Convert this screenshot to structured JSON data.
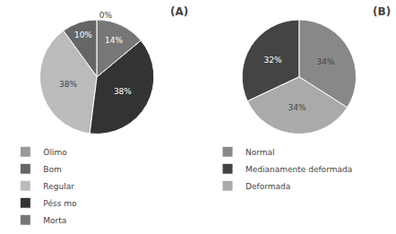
{
  "chart_data": [
    {
      "type": "pie",
      "title": "(A)",
      "categories": [
        "Ólimo",
        "Bom",
        "Regular",
        "Péss mo",
        "Morta"
      ],
      "values": [
        0,
        10,
        38,
        38,
        14
      ],
      "value_labels": [
        "0%",
        "10%",
        "38%",
        "38%",
        "14%"
      ],
      "colors": [
        "#999999",
        "#666666",
        "#bbbbbb",
        "#333333",
        "#777777"
      ],
      "data_labels": true,
      "legend": "bottom"
    },
    {
      "type": "pie",
      "title": "(B)",
      "categories": [
        "Normal",
        "Medianamente deformada",
        "Deformada"
      ],
      "values": [
        34,
        32,
        34
      ],
      "value_labels": [
        "34%",
        "32%",
        "34%"
      ],
      "colors": [
        "#888888",
        "#444444",
        "#aaaaaa"
      ],
      "data_labels": true,
      "legend": "bottom"
    }
  ]
}
